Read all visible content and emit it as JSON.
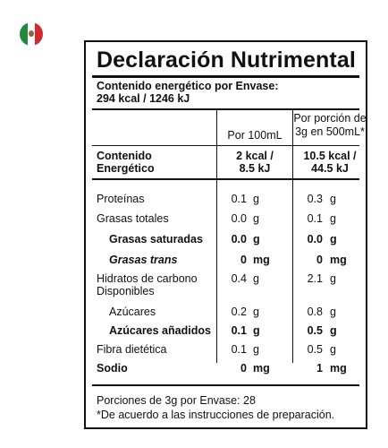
{
  "flag": {
    "icon": "mexico-flag-icon",
    "colors": {
      "green": "#1f8a3b",
      "white": "#ffffff",
      "red": "#d12b2e"
    }
  },
  "label": {
    "title": "Declaración Nutrimental",
    "energy_per_package_label": "Contenido energético por Envase:",
    "energy_per_package_value": "294 kcal / 1246 kJ",
    "col_per100_header": "Por 100mL",
    "col_portion_header_1": "Por porción de",
    "col_portion_header_2": "3g en 500mL*",
    "energy_row": {
      "label_1": "Contenido",
      "label_2": "Energético",
      "per100_1": "2 kcal /",
      "per100_2": "8.5 kJ",
      "portion_1": "10.5 kcal /",
      "portion_2": "44.5 kJ"
    },
    "nutrients": [
      {
        "name": "Proteínas",
        "per100": "0.1",
        "per100_unit": "g",
        "portion": "0.3",
        "portion_unit": "g"
      },
      {
        "name": "Grasas totales",
        "per100": "0.0",
        "per100_unit": "g",
        "portion": "0.1",
        "portion_unit": "g"
      },
      {
        "name": "Grasas saturadas",
        "per100": "0.0",
        "per100_unit": "g",
        "portion": "0.0",
        "portion_unit": "g"
      },
      {
        "name": "Grasas trans",
        "per100": "0",
        "per100_unit": "mg",
        "portion": "0",
        "portion_unit": "mg"
      },
      {
        "name_1": "Hidratos de carbono",
        "name_2": "Disponibles",
        "per100": "0.4",
        "per100_unit": "g",
        "portion": "2.1",
        "portion_unit": "g"
      },
      {
        "name": "Azúcares",
        "per100": "0.2",
        "per100_unit": "g",
        "portion": "0.8",
        "portion_unit": "g"
      },
      {
        "name": "Azúcares añadidos",
        "per100": "0.1",
        "per100_unit": "g",
        "portion": "0.5",
        "portion_unit": "g"
      },
      {
        "name": "Fibra dietética",
        "per100": "0.1",
        "per100_unit": "g",
        "portion": "0.5",
        "portion_unit": "g"
      },
      {
        "name": "Sodio",
        "per100": "0",
        "per100_unit": "mg",
        "portion": "1",
        "portion_unit": "mg"
      }
    ],
    "footnote_1": "Porciones de 3g por Envase: 28",
    "footnote_2": "*De acuerdo a las instrucciones de preparación."
  }
}
